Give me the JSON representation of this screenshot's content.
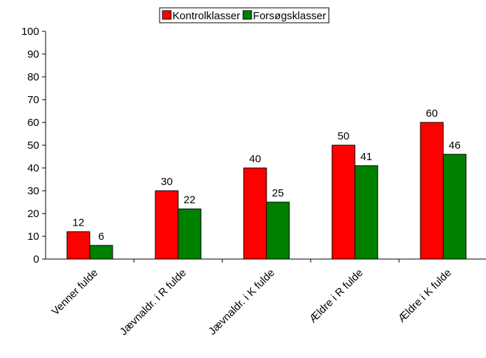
{
  "chart_data": {
    "type": "bar",
    "categories": [
      "Venner fulde",
      "Jævnaldr. i R fulde",
      "Jævnaldr. i K fulde",
      "Ældre i R fulde",
      "Ældre i K fulde"
    ],
    "series": [
      {
        "name": "Kontrolklasser",
        "color": "#ff0000",
        "values": [
          12,
          30,
          40,
          50,
          60
        ]
      },
      {
        "name": "Forsøgsklasser",
        "color": "#008000",
        "values": [
          6,
          22,
          25,
          41,
          46
        ]
      }
    ],
    "ylim": [
      0,
      100
    ],
    "yticks": [
      0,
      10,
      20,
      30,
      40,
      50,
      60,
      70,
      80,
      90,
      100
    ],
    "legend": "top",
    "grid": false
  }
}
